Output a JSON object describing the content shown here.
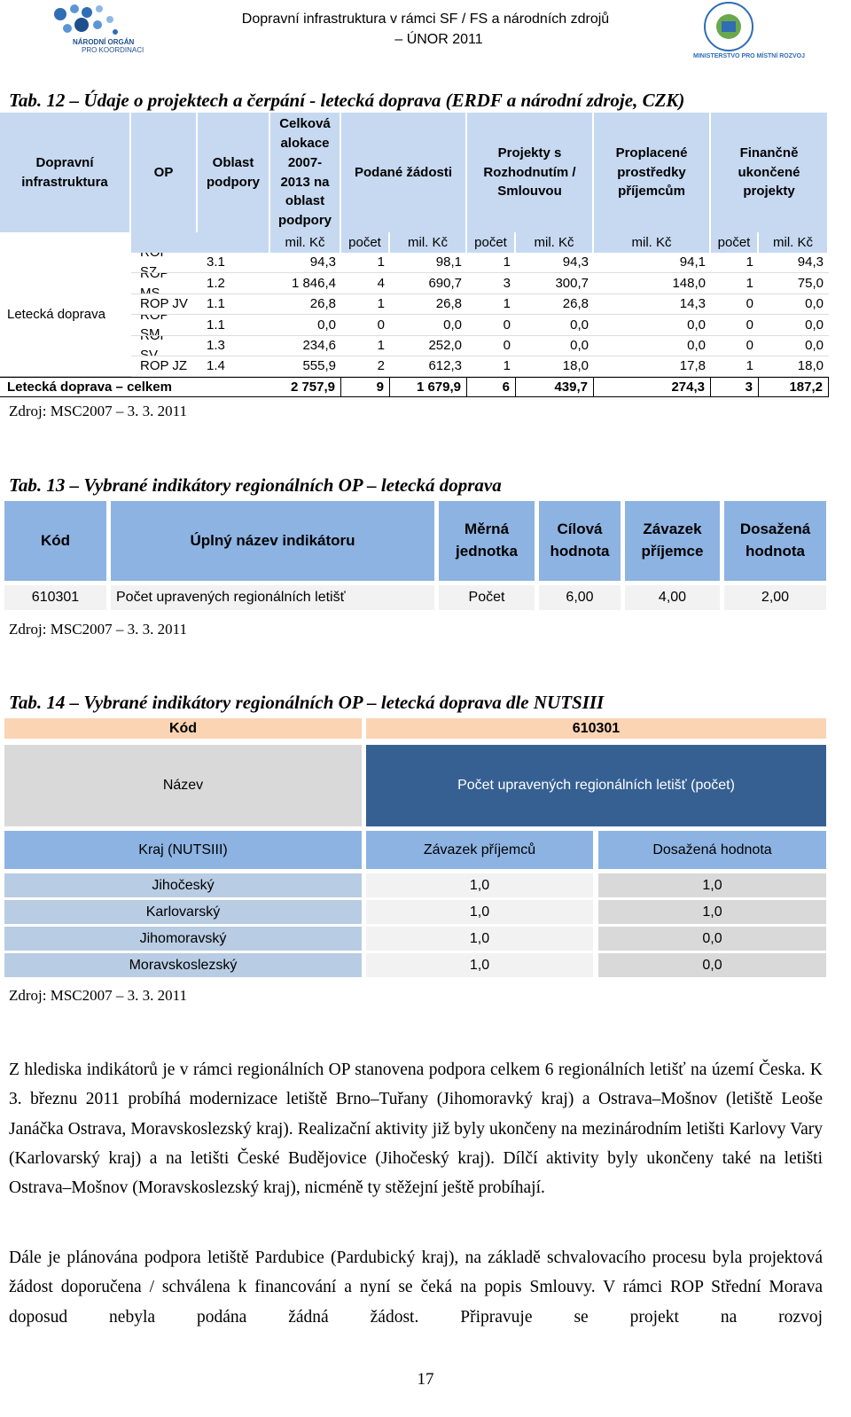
{
  "header": {
    "title_line1": "Dopravní infrastruktura v rámci SF / FS a národních zdrojů",
    "title_line2": "– ÚNOR 2011",
    "logo_left": [
      "NÁRODNÍ ORGÁN",
      "PRO KOORDINACI"
    ],
    "logo_right": "MINISTERSTVO PRO MÍSTNÍ ROZVOJ"
  },
  "tab12": {
    "caption": "Tab. 12 – Údaje o projektech a čerpání - letecká doprava (ERDF a národní zdroje, CZK)",
    "headers": [
      "Dopravní infrastruktura",
      "OP",
      "Oblast podpory",
      "Celková alokace 2007-2013 na oblast podpory",
      "Podané žádosti",
      "Projekty s Rozhodnutím / Smlouvou",
      "Proplacené prostředky příjemcům",
      "Finančně ukončené projekty"
    ],
    "units": [
      "mil. Kč",
      "počet",
      "mil. Kč",
      "počet",
      "mil. Kč",
      "mil. Kč",
      "počet",
      "mil. Kč"
    ],
    "group": "Letecká doprava",
    "rows": [
      [
        "ROP SZ",
        "3.1",
        "94,3",
        "1",
        "98,1",
        "1",
        "94,3",
        "94,1",
        "1",
        "94,3"
      ],
      [
        "ROP MS",
        "1.2",
        "1 846,4",
        "4",
        "690,7",
        "3",
        "300,7",
        "148,0",
        "1",
        "75,0"
      ],
      [
        "ROP JV",
        "1.1",
        "26,8",
        "1",
        "26,8",
        "1",
        "26,8",
        "14,3",
        "0",
        "0,0"
      ],
      [
        "ROP SM",
        "1.1",
        "0,0",
        "0",
        "0,0",
        "0",
        "0,0",
        "0,0",
        "0",
        "0,0"
      ],
      [
        "ROP SV",
        "1.3",
        "234,6",
        "1",
        "252,0",
        "0",
        "0,0",
        "0,0",
        "0",
        "0,0"
      ],
      [
        "ROP JZ",
        "1.4",
        "555,9",
        "2",
        "612,3",
        "1",
        "18,0",
        "17,8",
        "1",
        "18,0"
      ]
    ],
    "total_label": "Letecká doprava – celkem",
    "total": [
      "2 757,9",
      "9",
      "1 679,9",
      "6",
      "439,7",
      "274,3",
      "3",
      "187,2"
    ],
    "source": "Zdroj: MSC2007 – 3. 3. 2011"
  },
  "tab13": {
    "caption": "Tab. 13 – Vybrané indikátory regionálních OP – letecká doprava",
    "headers": [
      "Kód",
      "Úplný název indikátoru",
      "Měrná jednotka",
      "Cílová hodnota",
      "Závazek příjemce",
      "Dosažená hodnota"
    ],
    "row": [
      "610301",
      "Počet upravených regionálních letišť",
      "Počet",
      "6,00",
      "4,00",
      "2,00"
    ],
    "source": "Zdroj: MSC2007 – 3. 3. 2011"
  },
  "tab14": {
    "caption": "Tab. 14 – Vybrané indikátory regionálních OP – letecká doprava dle NUTSIII",
    "code_label": "Kód",
    "code": "610301",
    "name_label": "Název",
    "name": "Počet upravených regionálních letišť (počet)",
    "headers": [
      "Kraj (NUTSIII)",
      "Závazek příjemců",
      "Dosažená hodnota"
    ],
    "rows": [
      [
        "Jihočeský",
        "1,0",
        "1,0"
      ],
      [
        "Karlovarský",
        "1,0",
        "1,0"
      ],
      [
        "Jihomoravský",
        "1,0",
        "0,0"
      ],
      [
        "Moravskoslezský",
        "1,0",
        "0,0"
      ]
    ],
    "source": "Zdroj: MSC2007 – 3. 3. 2011"
  },
  "paragraphs": [
    "Z hlediska indikátorů je v rámci regionálních OP stanovena podpora celkem 6 regionálních letišť na území Česka. K 3. březnu 2011 probíhá modernizace letiště Brno–Tuřany (Jihomoravký kraj) a Ostrava–Mošnov (letiště Leoše Janáčka Ostrava, Moravskoslezský kraj). Realizační aktivity již byly ukončeny na mezinárodním letišti Karlovy Vary (Karlovarský kraj) a na letišti České Budějovice (Jihočeský kraj). Dílčí aktivity byly ukončeny také na letišti Ostrava–Mošnov (Moravskoslezský kraj), nicméně ty stěžejní ještě probíhají.",
    "Dále je plánována podpora letiště Pardubice (Pardubický kraj), na základě schvalovacího procesu byla projektová žádost doporučena / schválena k financování a nyní se čeká na popis Smlouvy. V rámci ROP Střední Morava doposud nebyla podána žádná žádost. Připravuje se projekt na rozvoj"
  ],
  "page_number": "17"
}
